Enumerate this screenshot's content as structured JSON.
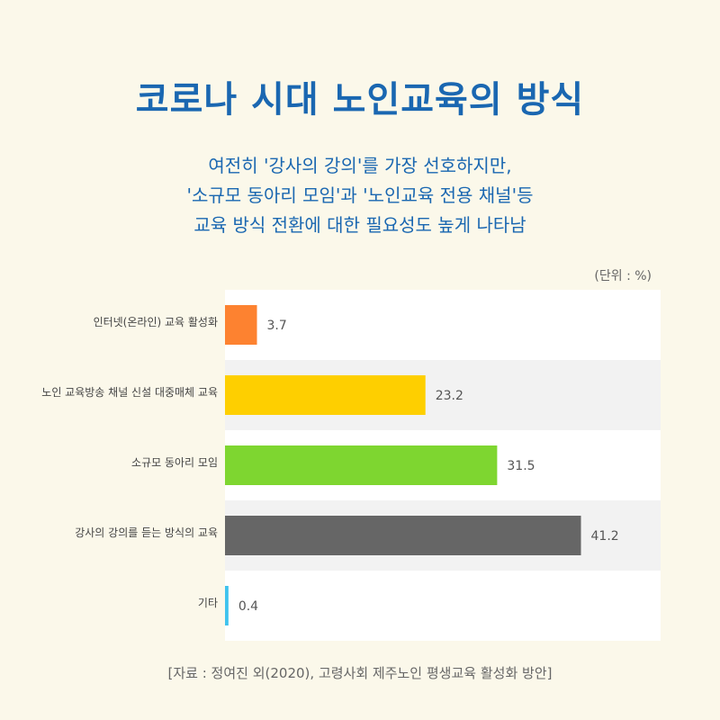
{
  "title": "코로나 시대 노인교육의 방식",
  "subtitle_lines": [
    "여전히 '강사의 강의'를 가장 선호하지만,",
    "'소규모 동아리 모임'과 '노인교육 전용 채널'등",
    "교육 방식 전환에 대한 필요성도 높게 나타남"
  ],
  "unit_label": "(단위 : %)",
  "source": "[자료 : 정여진 외(2020), 고령사회 제주노인 평생교육 활성화 방안]",
  "colors": {
    "title": "#1a67b1",
    "background": "#fbf8ea",
    "row_light": "#ffffff",
    "row_alt": "#f2f2f2"
  },
  "chart_data": {
    "type": "bar",
    "orientation": "horizontal",
    "categories": [
      "인터넷(온라인) 교육 활성화",
      "노인 교육방송 채널 신설 대중매체 교육",
      "소규모 동아리 모임",
      "강사의 강의를 듣는 방식의 교육",
      "기타"
    ],
    "values": [
      3.7,
      23.2,
      31.5,
      41.2,
      0.4
    ],
    "value_labels": [
      "3.7",
      "23.2",
      "31.5",
      "41.2",
      "0.4"
    ],
    "bar_colors": [
      "#fd8230",
      "#fecf00",
      "#7ed630",
      "#666666",
      "#3fc3ee"
    ],
    "xlim": [
      0,
      50
    ],
    "unit": "%",
    "grid": false,
    "legend": false
  }
}
